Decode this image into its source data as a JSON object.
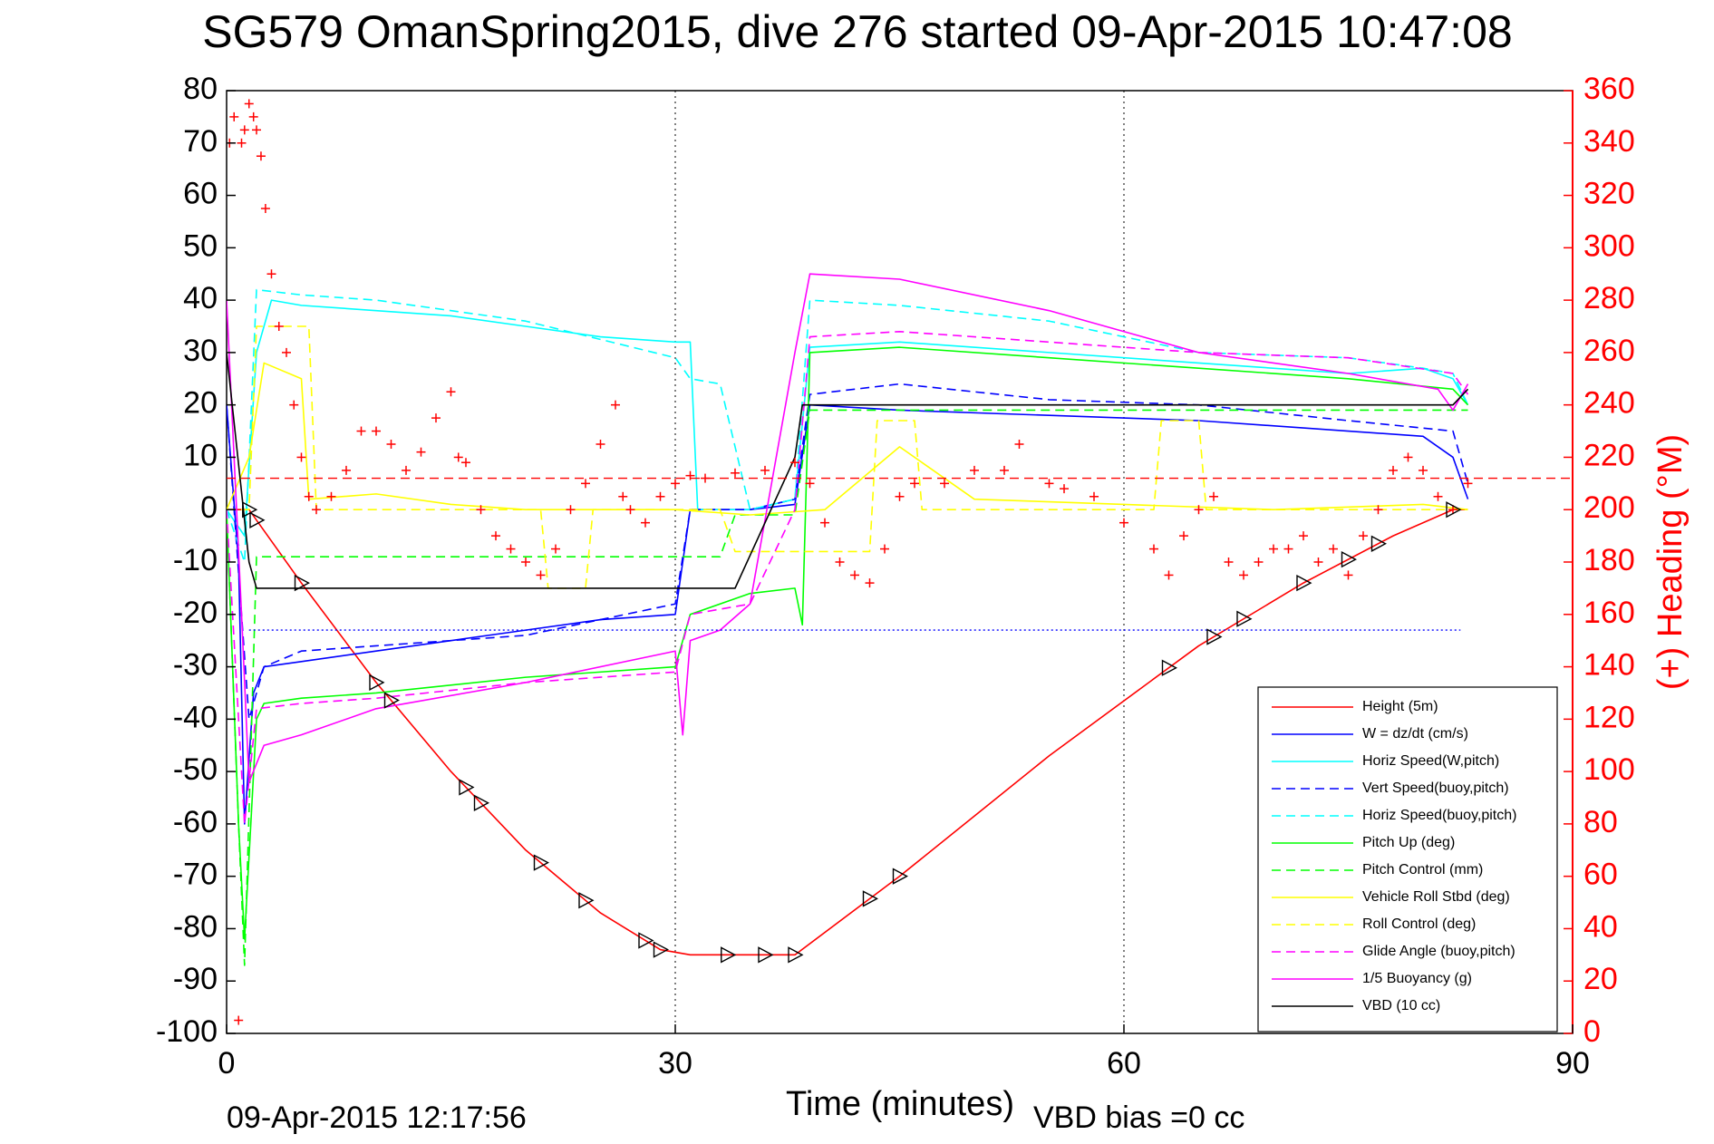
{
  "figure": {
    "title": "SG579 OmanSpring2015, dive 276 started 09-Apr-2015 10:47:08",
    "timestamp": "09-Apr-2015 12:17:56",
    "vbd_bias": "VBD bias =0 cc"
  },
  "chart_data": {
    "type": "line",
    "title": "SG579 OmanSpring2015, dive 276 started 09-Apr-2015 10:47:08",
    "xlabel": "Time (minutes)",
    "ylabel": "",
    "y2label": "(+) Heading (°M)",
    "xlim": [
      0,
      90
    ],
    "ylim": [
      -100,
      80
    ],
    "y2lim": [
      0,
      360
    ],
    "xticks": [
      0,
      30,
      60,
      90
    ],
    "yticks": [
      80,
      70,
      60,
      50,
      40,
      30,
      20,
      10,
      0,
      -10,
      -20,
      -30,
      -40,
      -50,
      -60,
      -70,
      -80,
      -90,
      -100
    ],
    "y2ticks": [
      360,
      340,
      320,
      300,
      280,
      260,
      240,
      220,
      200,
      180,
      160,
      140,
      120,
      100,
      80,
      60,
      40,
      20,
      0
    ],
    "grid": true,
    "legend_position": "lower-right",
    "colors": {
      "red": "#ff0000",
      "blue": "#0000ff",
      "cyan": "#00ffff",
      "green": "#00ff00",
      "yellow": "#ffff00",
      "magenta": "#ff00ff",
      "black": "#000000"
    },
    "series": [
      {
        "name": "Height (5m)",
        "color": "#ff0000",
        "dash": "solid",
        "x": [
          0,
          1.5,
          2,
          5,
          10,
          15,
          20,
          25,
          29,
          31,
          34,
          38,
          45,
          55,
          65,
          72,
          78,
          82,
          83
        ],
        "y": [
          0,
          0,
          -2,
          -14,
          -33,
          -50,
          -65,
          -77,
          -84,
          -85,
          -85,
          -85,
          -70,
          -47,
          -26,
          -14,
          -5,
          0,
          0
        ]
      },
      {
        "name": "W = dz/dt (cm/s)",
        "color": "#0000ff",
        "dash": "solid",
        "x": [
          0,
          0.8,
          1.2,
          1.8,
          2.5,
          5,
          10,
          15,
          20,
          25,
          30,
          31,
          35,
          38,
          39,
          45,
          55,
          65,
          75,
          80,
          82,
          83
        ],
        "y": [
          20,
          -10,
          -60,
          -35,
          -30,
          -29,
          -27,
          -25,
          -23,
          -21,
          -20,
          0,
          0,
          1,
          20,
          19,
          18,
          17,
          15,
          14,
          10,
          2
        ]
      },
      {
        "name": "Horiz Speed(W,pitch)",
        "color": "#00ffff",
        "dash": "solid",
        "x": [
          0,
          1.2,
          2,
          3,
          5,
          10,
          15,
          20,
          25,
          30,
          31,
          31.5,
          35,
          38,
          39,
          45,
          55,
          65,
          75,
          80,
          82,
          83
        ],
        "y": [
          0,
          -5,
          30,
          40,
          39,
          38,
          37,
          35,
          33,
          32,
          32,
          0,
          0,
          2,
          31,
          32,
          30,
          28,
          26,
          27,
          25,
          20
        ]
      },
      {
        "name": "Vert Speed(buoy,pitch)",
        "color": "#0000ff",
        "dash": "dashed",
        "x": [
          0,
          1,
          1.5,
          2.5,
          5,
          10,
          20,
          30,
          31,
          35,
          38,
          39,
          45,
          55,
          65,
          75,
          82,
          83
        ],
        "y": [
          20,
          -20,
          -40,
          -30,
          -27,
          -26,
          -24,
          -18,
          0,
          0,
          2,
          22,
          24,
          21,
          20,
          17,
          15,
          5
        ]
      },
      {
        "name": "Horiz Speed(buoy,pitch)",
        "color": "#00ffff",
        "dash": "dashed",
        "x": [
          0,
          1.2,
          2,
          5,
          10,
          20,
          30,
          31,
          33,
          35,
          38,
          39,
          45,
          55,
          65,
          75,
          80,
          82,
          83
        ],
        "y": [
          0,
          -10,
          42,
          41,
          40,
          36,
          29,
          25,
          24,
          0,
          2,
          40,
          39,
          36,
          30,
          29,
          27,
          26,
          20
        ]
      },
      {
        "name": "Pitch Up (deg)",
        "color": "#00ff00",
        "dash": "solid",
        "x": [
          0,
          0.8,
          1.2,
          2,
          2.5,
          5,
          10,
          20,
          30,
          31,
          35,
          38,
          38.5,
          39,
          45,
          55,
          65,
          75,
          82,
          83
        ],
        "y": [
          0,
          -60,
          -82,
          -40,
          -37,
          -36,
          -35,
          -32,
          -30,
          -20,
          -16,
          -15,
          -22,
          30,
          31,
          29,
          27,
          25,
          23,
          20
        ]
      },
      {
        "name": "Pitch Control (mm)",
        "color": "#00ff00",
        "dash": "dashed",
        "x": [
          0,
          0.8,
          1.2,
          2,
          33,
          34,
          38,
          39,
          83
        ],
        "y": [
          0,
          -60,
          -87,
          -9,
          -9,
          -1,
          -1,
          19,
          19
        ]
      },
      {
        "name": "Vehicle Roll Stbd (deg)",
        "color": "#ffff00",
        "dash": "solid",
        "x": [
          0,
          1.5,
          2.5,
          5,
          5.5,
          10,
          15,
          20,
          25,
          30,
          35,
          40,
          45,
          50,
          60,
          70,
          80,
          83
        ],
        "y": [
          0,
          10,
          28,
          25,
          2,
          3,
          1,
          0,
          0,
          0,
          -1,
          0,
          12,
          2,
          1,
          0,
          1,
          0
        ]
      },
      {
        "name": "Roll Control (deg)",
        "color": "#ffff00",
        "dash": "dashed",
        "x": [
          0,
          1.5,
          2,
          5.5,
          6,
          21,
          21.5,
          24,
          24.5,
          33,
          34,
          43,
          43.5,
          46,
          46.5,
          62,
          62.5,
          65,
          65.5,
          83
        ],
        "y": [
          0,
          0,
          35,
          35,
          0,
          0,
          -15,
          -15,
          0,
          0,
          -8,
          -8,
          17,
          17,
          0,
          0,
          17,
          17,
          0,
          0
        ]
      },
      {
        "name": "Glide Angle (buoy,pitch)",
        "color": "#ff00ff",
        "dash": "dashed",
        "x": [
          0,
          1.2,
          2,
          5,
          10,
          20,
          30,
          31,
          35,
          38,
          39,
          45,
          55,
          65,
          75,
          82,
          83
        ],
        "y": [
          0,
          -60,
          -38,
          -37,
          -36,
          -33,
          -31,
          -20,
          -18,
          0,
          33,
          34,
          32,
          30,
          29,
          26,
          22
        ]
      },
      {
        "name": "1/5 Buoyancy (g)",
        "color": "#ff00ff",
        "dash": "solid",
        "x": [
          0,
          1,
          1.5,
          2.5,
          5,
          10,
          20,
          30,
          30.5,
          31,
          33,
          35,
          38,
          39,
          45,
          55,
          65,
          75,
          81,
          82,
          83
        ],
        "y": [
          40,
          -20,
          -52,
          -45,
          -43,
          -38,
          -33,
          -27,
          -43,
          -25,
          -23,
          -18,
          30,
          45,
          44,
          38,
          30,
          26,
          23,
          19,
          24
        ]
      },
      {
        "name": "VBD (10 cc)",
        "color": "#000000",
        "dash": "solid",
        "x": [
          0,
          1.5,
          2,
          34,
          38,
          38.5,
          82,
          83
        ],
        "y": [
          30,
          -10,
          -15,
          -15,
          10,
          20,
          20,
          23
        ]
      }
    ],
    "heading": {
      "name": "(+) Heading (°M)",
      "marker": "+",
      "color": "#ff0000",
      "x": [
        0.2,
        0.5,
        0.8,
        1.0,
        1.2,
        1.5,
        1.8,
        2.0,
        2.3,
        2.6,
        3.0,
        3.5,
        4.0,
        4.5,
        5.0,
        5.5,
        6.0,
        7.0,
        8.0,
        9.0,
        10.0,
        11.0,
        12.0,
        13.0,
        14.0,
        15.0,
        15.5,
        16.0,
        17.0,
        18.0,
        19.0,
        20.0,
        21.0,
        22.0,
        23.0,
        24.0,
        25.0,
        26.0,
        26.5,
        27.0,
        28.0,
        29.0,
        30.0,
        31.0,
        32.0,
        34.0,
        36.0,
        38.0,
        39.0,
        40.0,
        41.0,
        42.0,
        43.0,
        44.0,
        45.0,
        46.0,
        48.0,
        50.0,
        52.0,
        53.0,
        55.0,
        56.0,
        58.0,
        60.0,
        62.0,
        63.0,
        64.0,
        65.0,
        66.0,
        67.0,
        68.0,
        69.0,
        70.0,
        71.0,
        72.0,
        73.0,
        74.0,
        75.0,
        76.0,
        77.0,
        78.0,
        79.0,
        80.0,
        81.0,
        82.0,
        83.0
      ],
      "y": [
        340,
        350,
        5,
        340,
        345,
        355,
        350,
        345,
        335,
        315,
        290,
        270,
        260,
        240,
        220,
        205,
        200,
        205,
        215,
        230,
        230,
        225,
        215,
        222,
        235,
        245,
        220,
        218,
        200,
        190,
        185,
        180,
        175,
        185,
        200,
        210,
        225,
        240,
        205,
        200,
        195,
        205,
        210,
        213,
        212,
        214,
        215,
        218,
        210,
        195,
        180,
        175,
        172,
        185,
        205,
        210,
        210,
        215,
        215,
        225,
        210,
        208,
        205,
        195,
        185,
        175,
        190,
        200,
        205,
        180,
        175,
        180,
        185,
        185,
        190,
        180,
        185,
        175,
        190,
        200,
        215,
        220,
        215,
        205,
        200,
        210
      ]
    },
    "dashed_reference_lines": [
      {
        "axis": "y2",
        "value": 212,
        "color": "#ff0000"
      },
      {
        "axis": "y",
        "value": -23,
        "color": "#0000ff"
      }
    ],
    "triangle_markers": {
      "color": "#000000",
      "x": [
        1.5,
        2.0,
        5.0,
        10.0,
        11.0,
        16.0,
        17.0,
        21.0,
        24.0,
        28.0,
        29.0,
        33.5,
        36.0,
        38.0,
        43.0,
        45.0,
        63.0,
        66.0,
        68.0,
        72.0,
        75.0,
        77.0,
        82.0
      ]
    }
  }
}
